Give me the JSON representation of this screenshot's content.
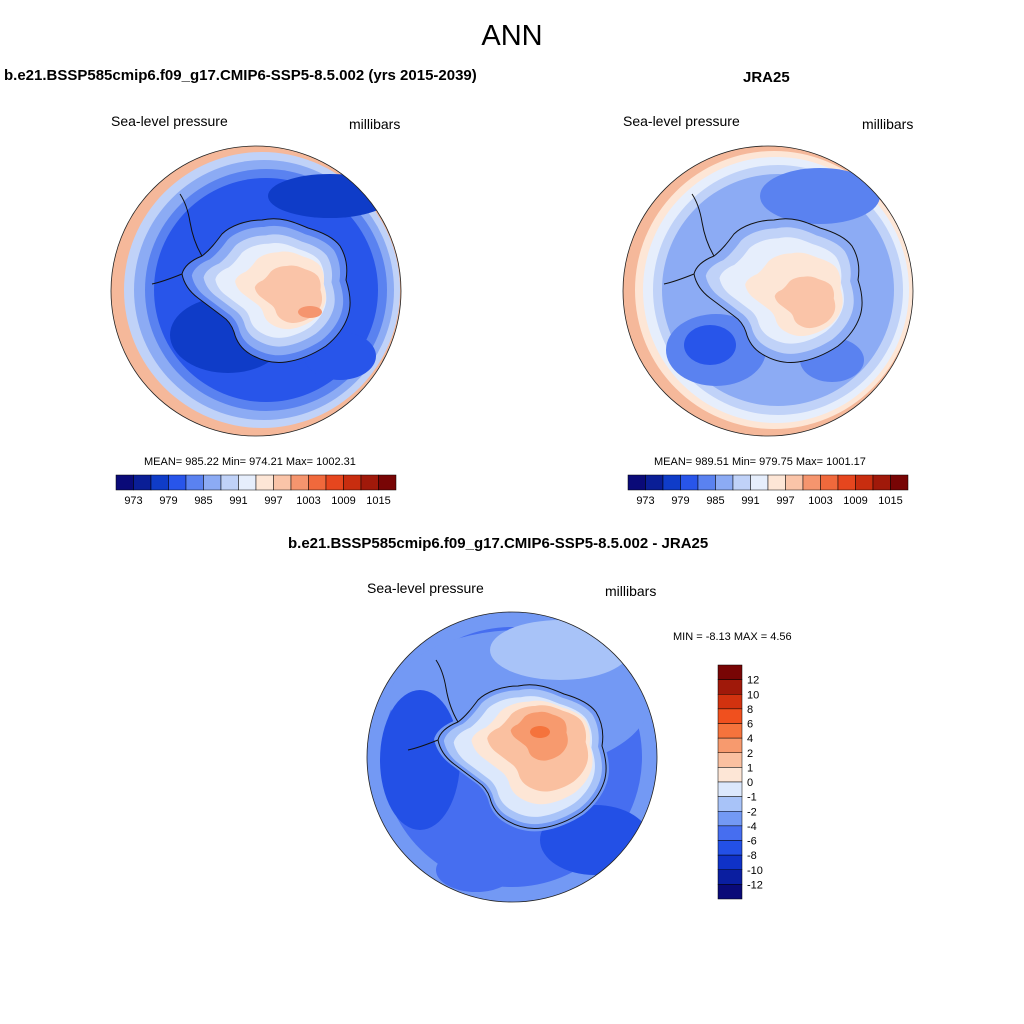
{
  "figure": {
    "season": "ANN"
  },
  "panels": {
    "model": {
      "title": "b.e21.BSSP585cmip6.f09_g17.CMIP6-SSP5-8.5.002 (yrs 2015-2039)",
      "variable": "Sea-level pressure",
      "units": "millibars",
      "stats": "MEAN= 985.22  Min= 974.21  Max= 1002.31"
    },
    "obs": {
      "title": "JRA25",
      "variable": "Sea-level pressure",
      "units": "millibars",
      "stats": "MEAN= 989.51  Min= 979.75  Max= 1001.17"
    },
    "diff": {
      "title": "b.e21.BSSP585cmip6.f09_g17.CMIP6-SSP5-8.5.002 - JRA25",
      "variable": "Sea-level pressure",
      "units": "millibars",
      "stats": "MIN =  -8.13 MAX =   4.56"
    }
  },
  "colorbars": {
    "abs_labels": [
      "973",
      "979",
      "985",
      "991",
      "997",
      "1003",
      "1009",
      "1015"
    ],
    "abs_colors": [
      "#0a0a78",
      "#0a1e96",
      "#0f3cc8",
      "#2855ea",
      "#5a82f0",
      "#8cabf4",
      "#c0d2f8",
      "#e6eefc",
      "#fde6d6",
      "#fac4a8",
      "#f5956e",
      "#f0693c",
      "#e6461e",
      "#c82d0f",
      "#a0190a",
      "#780505"
    ],
    "diff_labels": [
      "12",
      "10",
      "8",
      "6",
      "4",
      "2",
      "1",
      "0",
      "-1",
      "-2",
      "-4",
      "-6",
      "-8",
      "-10",
      "-12"
    ],
    "diff_colors": [
      "#780505",
      "#a0190a",
      "#d2320f",
      "#f0501e",
      "#f5733c",
      "#f79a6e",
      "#fac0a0",
      "#fde6d6",
      "#dce8fc",
      "#a8c3f8",
      "#7399f4",
      "#466ef0",
      "#2350e6",
      "#0f32c8",
      "#0a1ea0",
      "#0a0a78"
    ]
  }
}
